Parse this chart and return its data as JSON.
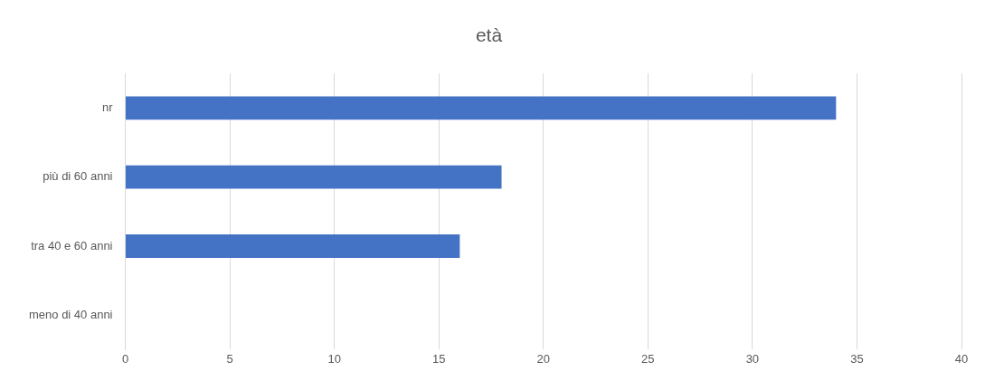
{
  "chart_data": {
    "type": "bar",
    "orientation": "horizontal",
    "title": "età",
    "categories": [
      "nr",
      "più di 60 anni",
      "tra 40 e 60 anni",
      "meno di 40 anni"
    ],
    "values": [
      34,
      18,
      16,
      0
    ],
    "color": "#4472c4",
    "xlim": [
      0,
      40
    ],
    "xticks": [
      0,
      5,
      10,
      15,
      20,
      25,
      30,
      35,
      40
    ],
    "grid": "x",
    "legend": false
  }
}
